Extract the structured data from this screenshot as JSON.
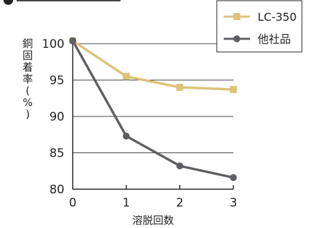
{
  "chart_data": {
    "type": "line",
    "title": "",
    "xlabel": "溶脱回数",
    "ylabel": "銅固着率(%)",
    "x": [
      0,
      1,
      2,
      3
    ],
    "ylim": [
      80,
      100
    ],
    "yticks": [
      80,
      85,
      90,
      95,
      100
    ],
    "xticks": [
      0,
      1,
      2,
      3
    ],
    "grid": "horizontal",
    "legend_position": "top-right",
    "series": [
      {
        "name": "LC-350",
        "values": [
          100.4,
          95.5,
          94.0,
          93.7
        ],
        "color": "#dcc27a",
        "marker": "square"
      },
      {
        "name": "他社品",
        "values": [
          100.4,
          87.3,
          83.2,
          81.6
        ],
        "color": "#5f5e63",
        "marker": "circle"
      }
    ]
  }
}
